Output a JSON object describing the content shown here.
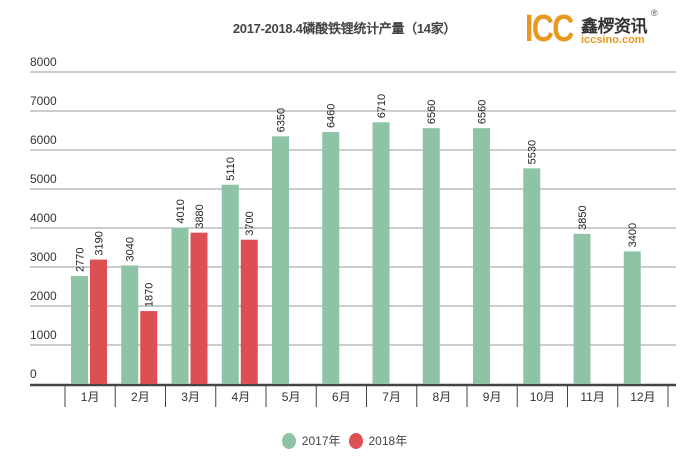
{
  "chart_data": {
    "type": "bar",
    "title": "2017-2018.4磷酸铁锂统计产量（14家）",
    "xlabel": "",
    "ylabel": "",
    "ylim": [
      0,
      8000
    ],
    "yticks": [
      "0",
      "1000",
      "2000",
      "3000",
      "4000",
      "5000",
      "6000",
      "7000",
      "8000"
    ],
    "grid": true,
    "legend_position": "bottom",
    "categories": [
      "1月",
      "2月",
      "3月",
      "4月",
      "5月",
      "6月",
      "7月",
      "8月",
      "9月",
      "10月",
      "11月",
      "12月"
    ],
    "series": [
      {
        "name": "2017年",
        "color": "#8ec3a5",
        "values": [
          2770,
          3040,
          4010,
          5110,
          6350,
          6460,
          6710,
          6560,
          6560,
          5530,
          3850,
          3400
        ]
      },
      {
        "name": "2018年",
        "color": "#dc5053",
        "values": [
          3190,
          1870,
          3880,
          3700,
          null,
          null,
          null,
          null,
          null,
          null,
          null,
          null
        ]
      }
    ]
  },
  "logo": {
    "mark": "ICC",
    "name": "鑫椤资讯",
    "url": "iccsino.com",
    "reg": "®"
  }
}
